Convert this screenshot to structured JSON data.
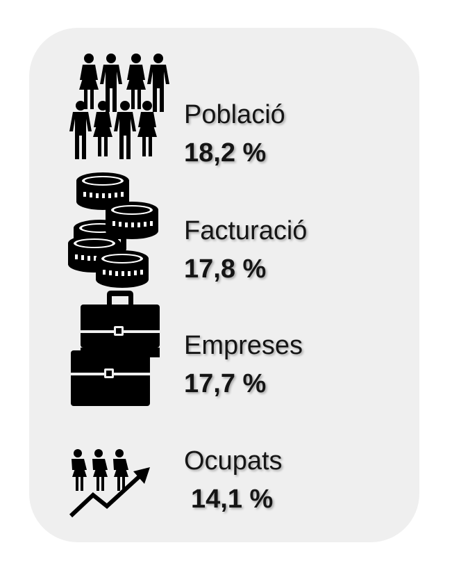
{
  "stats": [
    {
      "label": "Població",
      "value": "18,2 %",
      "icon": "population-icon"
    },
    {
      "label": "Facturació",
      "value": "17,8 %",
      "icon": "coins-icon"
    },
    {
      "label": "Empreses",
      "value": "17,7 %",
      "icon": "briefcases-icon"
    },
    {
      "label": "Ocupats",
      "value": "14,1 %",
      "icon": "employment-growth-icon"
    }
  ],
  "colors": {
    "card_background": "#efefef",
    "icon": "#000000",
    "text": "#151515"
  }
}
